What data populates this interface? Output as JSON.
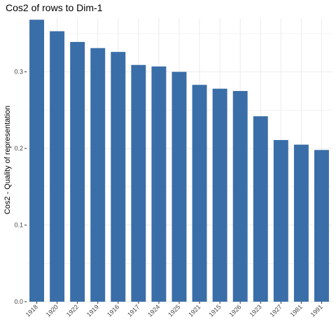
{
  "chart_data": {
    "type": "bar",
    "title": "Cos2 of rows to Dim-1",
    "xlabel": "",
    "ylabel": "Cos2 - Quality of representation",
    "categories": [
      "1918",
      "1920",
      "1922",
      "1919",
      "1916",
      "1917",
      "1924",
      "1925",
      "1921",
      "1915",
      "1926",
      "1923",
      "1927",
      "1981",
      "1991"
    ],
    "values": [
      0.368,
      0.353,
      0.339,
      0.331,
      0.326,
      0.309,
      0.307,
      0.3,
      0.283,
      0.278,
      0.275,
      0.242,
      0.211,
      0.205,
      0.198
    ],
    "ylim": [
      0,
      0.37
    ],
    "yticks": [
      0.0,
      0.1,
      0.2,
      0.3
    ],
    "ytick_labels": [
      "0.0",
      "0.1",
      "0.2",
      "0.3"
    ],
    "bar_color": "#3A6EA8",
    "grid": true,
    "grid_color": "#EBEBEB"
  }
}
